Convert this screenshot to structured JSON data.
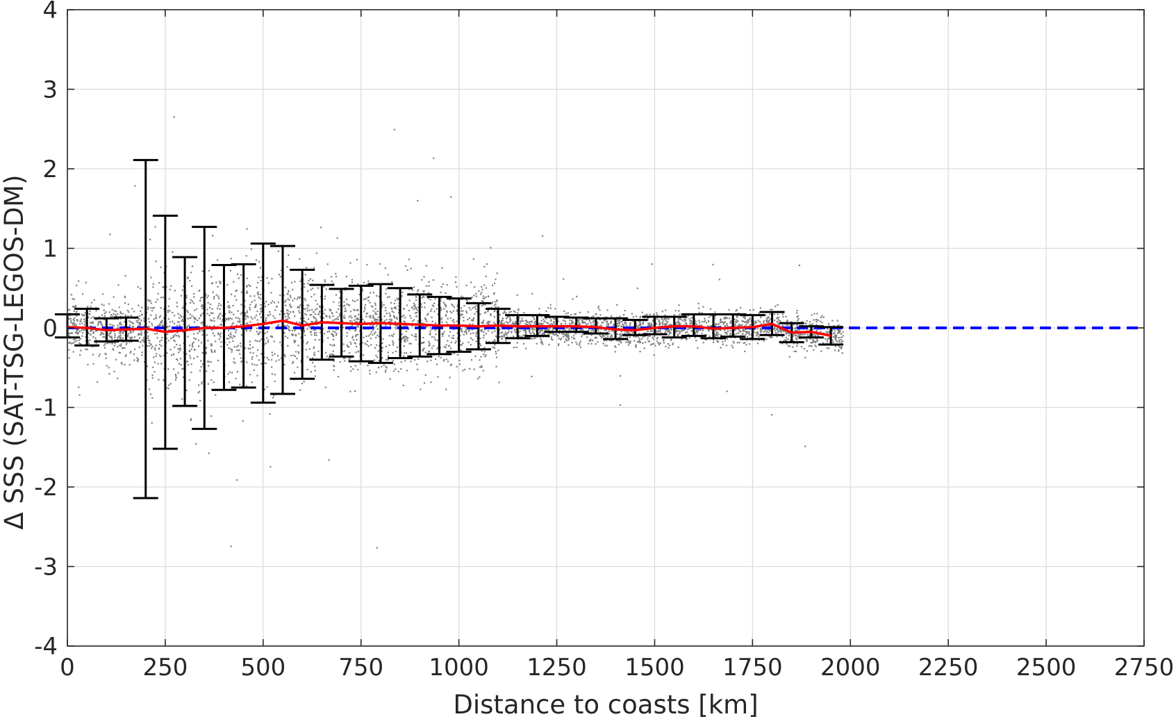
{
  "chart_data": {
    "type": "scatter",
    "xlabel": "Distance to coasts [km]",
    "ylabel": "Δ SSS (SAT-TSG-LEGOS-DM)",
    "xlim": [
      0,
      2750
    ],
    "ylim": [
      -4,
      4
    ],
    "xticks": [
      "0",
      "250",
      "500",
      "750",
      "1000",
      "1250",
      "1500",
      "1750",
      "2000",
      "2250",
      "2500",
      "2750"
    ],
    "yticks": [
      "-4",
      "-3",
      "-2",
      "-1",
      "0",
      "1",
      "2",
      "3",
      "4"
    ],
    "grid": true,
    "colors": {
      "scatter": "#808080",
      "mean_line": "#ff0000",
      "zero_line": "#0000ff",
      "error_bars": "#000000",
      "grid": "#dcdcdc",
      "axes": "#262626"
    },
    "scatter_cloud": [
      {
        "x_range": [
          0,
          200
        ],
        "spread": 0.18
      },
      {
        "x_range": [
          200,
          620
        ],
        "spread": 0.35
      },
      {
        "x_range": [
          620,
          1100
        ],
        "spread": 0.3
      },
      {
        "x_range": [
          1100,
          1980
        ],
        "spread": 0.1
      }
    ],
    "error_bars": [
      {
        "x": 0,
        "low": -0.12,
        "high": 0.17
      },
      {
        "x": 50,
        "low": -0.22,
        "high": 0.24
      },
      {
        "x": 100,
        "low": -0.17,
        "high": 0.12
      },
      {
        "x": 150,
        "low": -0.16,
        "high": 0.13
      },
      {
        "x": 200,
        "low": -2.14,
        "high": 2.11
      },
      {
        "x": 250,
        "low": -1.52,
        "high": 1.41
      },
      {
        "x": 300,
        "low": -0.98,
        "high": 0.89
      },
      {
        "x": 350,
        "low": -1.27,
        "high": 1.27
      },
      {
        "x": 400,
        "low": -0.78,
        "high": 0.79
      },
      {
        "x": 450,
        "low": -0.75,
        "high": 0.8
      },
      {
        "x": 500,
        "low": -0.94,
        "high": 1.06
      },
      {
        "x": 550,
        "low": -0.83,
        "high": 1.03
      },
      {
        "x": 600,
        "low": -0.64,
        "high": 0.73
      },
      {
        "x": 650,
        "low": -0.4,
        "high": 0.54
      },
      {
        "x": 700,
        "low": -0.36,
        "high": 0.49
      },
      {
        "x": 750,
        "low": -0.42,
        "high": 0.53
      },
      {
        "x": 800,
        "low": -0.44,
        "high": 0.55
      },
      {
        "x": 850,
        "low": -0.38,
        "high": 0.5
      },
      {
        "x": 900,
        "low": -0.36,
        "high": 0.42
      },
      {
        "x": 950,
        "low": -0.33,
        "high": 0.39
      },
      {
        "x": 1000,
        "low": -0.3,
        "high": 0.37
      },
      {
        "x": 1050,
        "low": -0.27,
        "high": 0.31
      },
      {
        "x": 1100,
        "low": -0.19,
        "high": 0.24
      },
      {
        "x": 1150,
        "low": -0.13,
        "high": 0.16
      },
      {
        "x": 1200,
        "low": -0.1,
        "high": 0.16
      },
      {
        "x": 1250,
        "low": -0.05,
        "high": 0.14
      },
      {
        "x": 1300,
        "low": -0.05,
        "high": 0.13
      },
      {
        "x": 1350,
        "low": -0.07,
        "high": 0.12
      },
      {
        "x": 1400,
        "low": -0.14,
        "high": 0.12
      },
      {
        "x": 1450,
        "low": -0.09,
        "high": 0.1
      },
      {
        "x": 1500,
        "low": -0.08,
        "high": 0.14
      },
      {
        "x": 1550,
        "low": -0.12,
        "high": 0.14
      },
      {
        "x": 1600,
        "low": -0.1,
        "high": 0.17
      },
      {
        "x": 1650,
        "low": -0.13,
        "high": 0.17
      },
      {
        "x": 1700,
        "low": -0.11,
        "high": 0.17
      },
      {
        "x": 1750,
        "low": -0.14,
        "high": 0.16
      },
      {
        "x": 1800,
        "low": -0.09,
        "high": 0.2
      },
      {
        "x": 1850,
        "low": -0.18,
        "high": 0.06
      },
      {
        "x": 1900,
        "low": -0.12,
        "high": 0.02
      },
      {
        "x": 1950,
        "low": -0.21,
        "high": 0.01
      }
    ],
    "mean_line": {
      "x": [
        0,
        50,
        100,
        150,
        200,
        250,
        300,
        350,
        400,
        450,
        500,
        550,
        600,
        650,
        700,
        750,
        800,
        850,
        900,
        950,
        1000,
        1050,
        1100,
        1150,
        1200,
        1250,
        1300,
        1350,
        1400,
        1450,
        1500,
        1550,
        1600,
        1650,
        1700,
        1750,
        1800,
        1850,
        1900,
        1950
      ],
      "y": [
        0.01,
        0.0,
        -0.03,
        -0.02,
        -0.01,
        -0.05,
        -0.03,
        0.0,
        0.0,
        0.02,
        0.05,
        0.09,
        0.03,
        0.07,
        0.06,
        0.05,
        0.06,
        0.05,
        0.04,
        0.03,
        0.03,
        0.02,
        0.03,
        0.02,
        0.02,
        0.02,
        0.02,
        0.01,
        -0.02,
        -0.03,
        0.0,
        0.02,
        0.02,
        -0.01,
        0.0,
        0.01,
        0.05,
        -0.06,
        -0.05,
        -0.1
      ]
    },
    "zero_line": {
      "y": 0
    }
  }
}
